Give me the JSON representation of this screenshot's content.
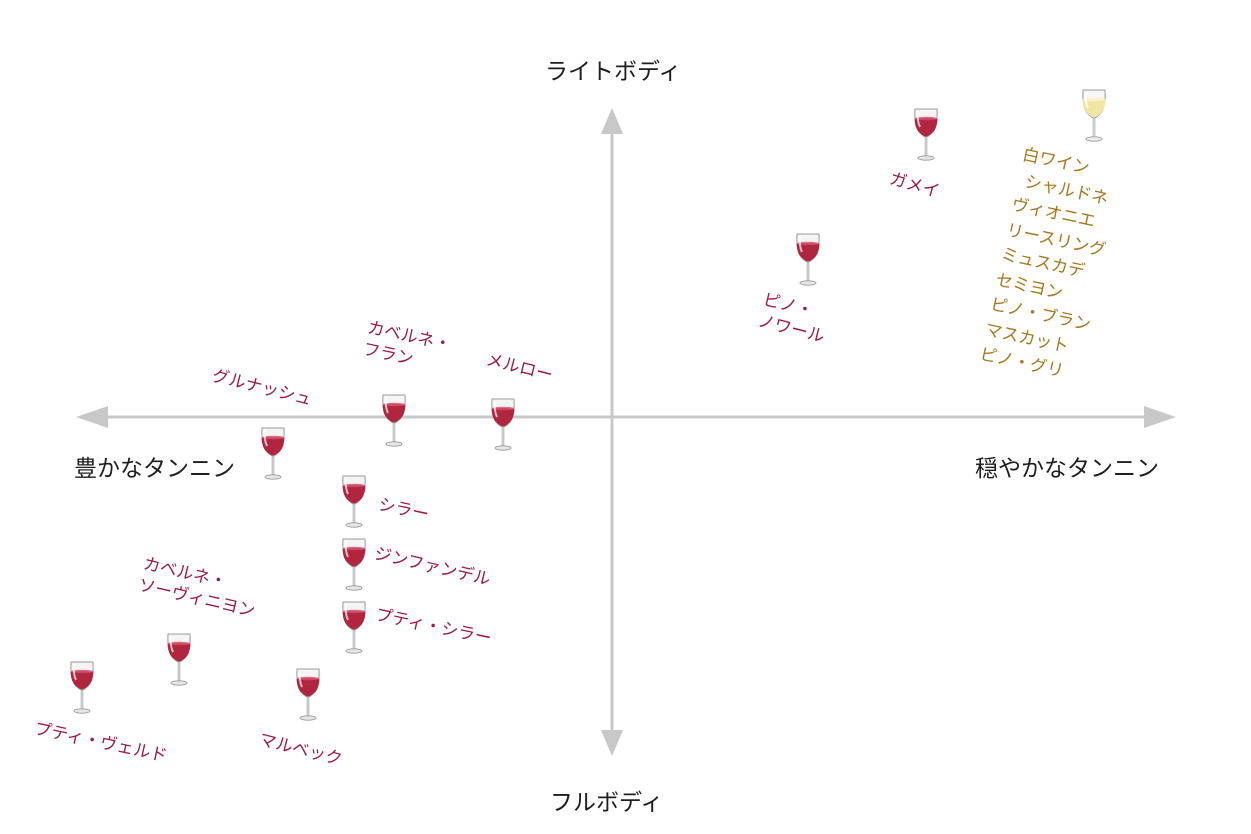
{
  "axes": {
    "top": "ライトボディ",
    "bottom": "フルボディ",
    "left": "豊かなタンニン",
    "right": "穏やかなタンニン"
  },
  "colors": {
    "axis": "#c8c8c8",
    "red_label": "#9b1b4a",
    "white_label": "#a87820",
    "red_wine": "#b0263f",
    "white_wine": "#f2e6a6"
  },
  "wines": {
    "gamay": {
      "lines": [
        "ガメイ"
      ],
      "type": "red"
    },
    "pinot_noir": {
      "lines": [
        "ピノ・",
        "ノワール"
      ],
      "type": "red"
    },
    "cabernet_franc": {
      "lines": [
        "カベルネ・",
        "フラン"
      ],
      "type": "red"
    },
    "merlot": {
      "lines": [
        "メルロー"
      ],
      "type": "red"
    },
    "grenache": {
      "lines": [
        "グルナッシュ"
      ],
      "type": "red"
    },
    "syrah": {
      "lines": [
        "シラー"
      ],
      "type": "red"
    },
    "zinfandel": {
      "lines": [
        "ジンファンデル"
      ],
      "type": "red"
    },
    "petite_sirah": {
      "lines": [
        "プティ・シラー"
      ],
      "type": "red"
    },
    "cabernet_sauvignon": {
      "lines": [
        "カベルネ・",
        "ソーヴィニヨン"
      ],
      "type": "red"
    },
    "petit_verdot": {
      "lines": [
        "プティ・ヴェルド"
      ],
      "type": "red"
    },
    "malbec": {
      "lines": [
        "マルベック"
      ],
      "type": "red"
    }
  },
  "white_wines": {
    "title": "白ワイン",
    "items": [
      "シャルドネ",
      "ヴィオニエ",
      "リースリング",
      "ミュスカデ",
      "セミヨン",
      "ピノ・ブラン",
      "マスカット",
      "ピノ・グリ"
    ]
  }
}
